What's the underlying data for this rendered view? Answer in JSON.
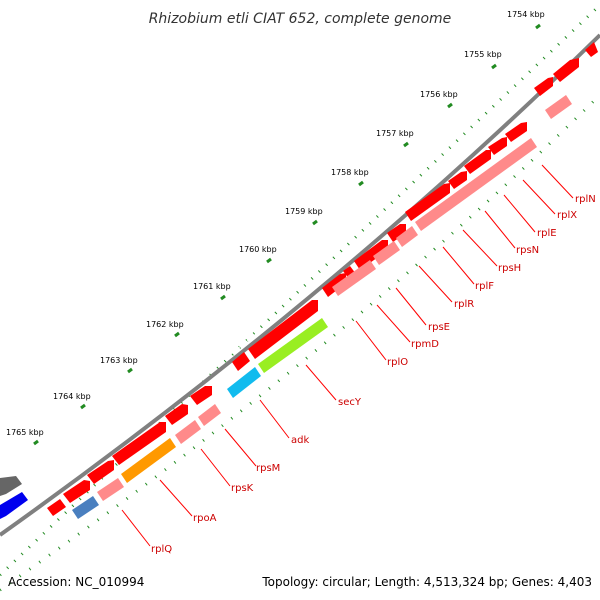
{
  "title": "Rhizobium etli CIAT 652, complete genome",
  "footer": {
    "accession": "Accession: NC_010994",
    "summary": "Topology: circular; Length: 4,513,324 bp; Genes: 4,403"
  },
  "colors": {
    "backbone": "#808080",
    "gene_forward": "#ff0000",
    "gene_reverse": "#ff8a8a",
    "tick": "#228b22",
    "label_line": "#ff0000",
    "label_text": "#cc0000",
    "secY": "#99ee22",
    "adk": "#11bbee",
    "rpoA": "#ff9900",
    "rplQ": "#4a7fbf",
    "edge_blue": "#0000ee",
    "edge_gray": "#666666"
  },
  "kbp_labels": [
    "1754 kbp",
    "1755 kbp",
    "1756 kbp",
    "1757 kbp",
    "1758 kbp",
    "1759 kbp",
    "1760 kbp",
    "1761 kbp",
    "1762 kbp",
    "1763 kbp",
    "1764 kbp",
    "1765 kbp"
  ],
  "gene_labels": [
    "rplN",
    "rplX",
    "rplE",
    "rpsN",
    "rpsH",
    "rplF",
    "rplR",
    "rpsE",
    "rpmD",
    "rplO",
    "secY",
    "adk",
    "rpsM",
    "rpsK",
    "rpoA",
    "rplQ"
  ]
}
